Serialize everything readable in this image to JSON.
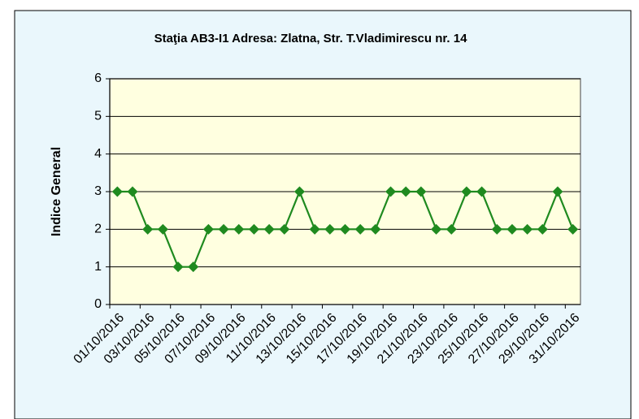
{
  "chart_data": {
    "type": "line",
    "title": "Staţia AB3-I1 Adresa: Zlatna,  Str. T.Vladimirescu  nr. 14",
    "y_label": "Indice General",
    "categories": [
      "01/10/2016",
      null,
      "03/10/2016",
      null,
      "05/10/2016",
      null,
      "07/10/2016",
      null,
      "09/10/2016",
      null,
      "11/10/2016",
      null,
      "13/10/2016",
      null,
      "15/10/2016",
      null,
      "17/10/2016",
      null,
      "19/10/2016",
      null,
      "21/10/2016",
      null,
      "23/10/2016",
      null,
      "25/10/2016",
      null,
      "27/10/2016",
      null,
      "29/10/2016",
      null,
      "31/10/2016"
    ],
    "series": [
      {
        "color": "#1f8a1f",
        "values": [
          3,
          3,
          2,
          2,
          1,
          1,
          2,
          2,
          2,
          2,
          2,
          2,
          3,
          2,
          2,
          2,
          2,
          2,
          3,
          3,
          3,
          2,
          2,
          3,
          3,
          2,
          2,
          2,
          2,
          3,
          2
        ]
      }
    ],
    "ylim": [
      0,
      6
    ],
    "yticks": [
      0,
      1,
      2,
      3,
      4,
      5,
      6
    ],
    "grid": true
  }
}
